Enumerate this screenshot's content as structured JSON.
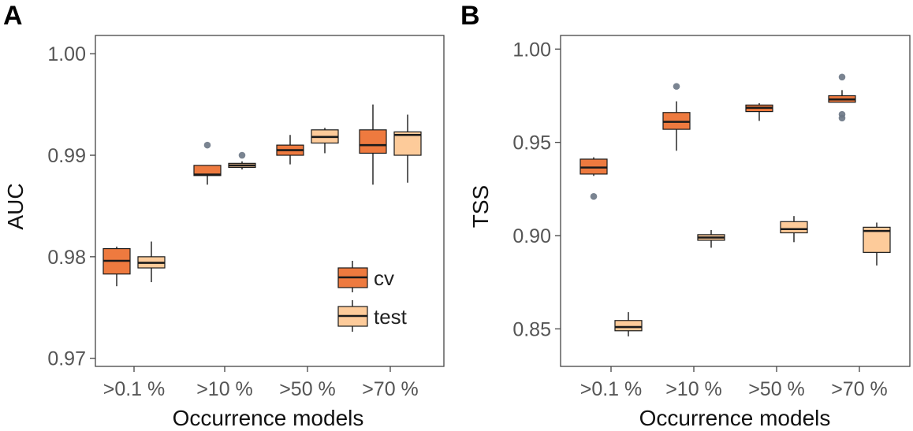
{
  "colors": {
    "cv_fill": "#EE7A3F",
    "cv_line": "#1A1A1A",
    "test_fill": "#FDCB9A",
    "test_line": "#1A1A1A",
    "whisker": "#1A1A1A",
    "outlier": "#6B7785",
    "frame": "#444444"
  },
  "legend": {
    "cv": "cv",
    "test": "test"
  },
  "chart_data": [
    {
      "panel": "A",
      "type": "box",
      "xlabel": "Occurrence models",
      "ylabel": "AUC",
      "categories": [
        ">0.1 %",
        ">10 %",
        ">50 %",
        ">70 %"
      ],
      "ylim": [
        0.9692,
        1.0018
      ],
      "yticks": [
        0.97,
        0.98,
        0.99,
        1.0
      ],
      "ytick_labels": [
        "0.97",
        "0.98",
        "0.99",
        "1.00"
      ],
      "legend_position": "inside-bottom-right",
      "series": [
        {
          "name": "cv",
          "boxes": [
            {
              "whisker_low": 0.9771,
              "q1": 0.9783,
              "median": 0.9796,
              "q3": 0.9808,
              "whisker_high": 0.981,
              "outliers": []
            },
            {
              "whisker_low": 0.9871,
              "q1": 0.988,
              "median": 0.9881,
              "q3": 0.989,
              "whisker_high": 0.989,
              "outliers": [
                0.991
              ]
            },
            {
              "whisker_low": 0.9891,
              "q1": 0.99,
              "median": 0.9905,
              "q3": 0.991,
              "whisker_high": 0.992,
              "outliers": []
            },
            {
              "whisker_low": 0.9871,
              "q1": 0.9902,
              "median": 0.991,
              "q3": 0.9925,
              "whisker_high": 0.995,
              "outliers": []
            }
          ]
        },
        {
          "name": "test",
          "boxes": [
            {
              "whisker_low": 0.9775,
              "q1": 0.9789,
              "median": 0.9794,
              "q3": 0.98,
              "whisker_high": 0.9815,
              "outliers": []
            },
            {
              "whisker_low": 0.9886,
              "q1": 0.9888,
              "median": 0.989,
              "q3": 0.9892,
              "whisker_high": 0.9894,
              "outliers": [
                0.99
              ]
            },
            {
              "whisker_low": 0.9902,
              "q1": 0.9912,
              "median": 0.9918,
              "q3": 0.9925,
              "whisker_high": 0.9927,
              "outliers": []
            },
            {
              "whisker_low": 0.9873,
              "q1": 0.99,
              "median": 0.992,
              "q3": 0.9923,
              "whisker_high": 0.994,
              "outliers": []
            }
          ]
        }
      ]
    },
    {
      "panel": "B",
      "type": "box",
      "xlabel": "Occurrence models",
      "ylabel": "TSS",
      "categories": [
        ">0.1 %",
        ">10 %",
        ">50 %",
        ">70 %"
      ],
      "ylim": [
        0.8299,
        1.0073
      ],
      "yticks": [
        0.85,
        0.9,
        0.95,
        1.0
      ],
      "ytick_labels": [
        "0.85",
        "0.90",
        "0.95",
        "1.00"
      ],
      "series": [
        {
          "name": "cv",
          "boxes": [
            {
              "whisker_low": 0.932,
              "q1": 0.933,
              "median": 0.9365,
              "q3": 0.941,
              "whisker_high": 0.942,
              "outliers": [
                0.921
              ]
            },
            {
              "whisker_low": 0.9455,
              "q1": 0.957,
              "median": 0.961,
              "q3": 0.966,
              "whisker_high": 0.972,
              "outliers": [
                0.98
              ]
            },
            {
              "whisker_low": 0.9615,
              "q1": 0.9665,
              "median": 0.9685,
              "q3": 0.97,
              "whisker_high": 0.971,
              "outliers": []
            },
            {
              "whisker_low": 0.9715,
              "q1": 0.9715,
              "median": 0.973,
              "q3": 0.975,
              "whisker_high": 0.978,
              "outliers": [
                0.985,
                0.965,
                0.963
              ]
            }
          ]
        },
        {
          "name": "test",
          "boxes": [
            {
              "whisker_low": 0.846,
              "q1": 0.849,
              "median": 0.851,
              "q3": 0.8545,
              "whisker_high": 0.859,
              "outliers": []
            },
            {
              "whisker_low": 0.8935,
              "q1": 0.8975,
              "median": 0.899,
              "q3": 0.9005,
              "whisker_high": 0.903,
              "outliers": []
            },
            {
              "whisker_low": 0.8965,
              "q1": 0.9015,
              "median": 0.9035,
              "q3": 0.9075,
              "whisker_high": 0.9105,
              "outliers": []
            },
            {
              "whisker_low": 0.884,
              "q1": 0.891,
              "median": 0.9025,
              "q3": 0.9045,
              "whisker_high": 0.907,
              "outliers": []
            }
          ]
        }
      ]
    }
  ]
}
